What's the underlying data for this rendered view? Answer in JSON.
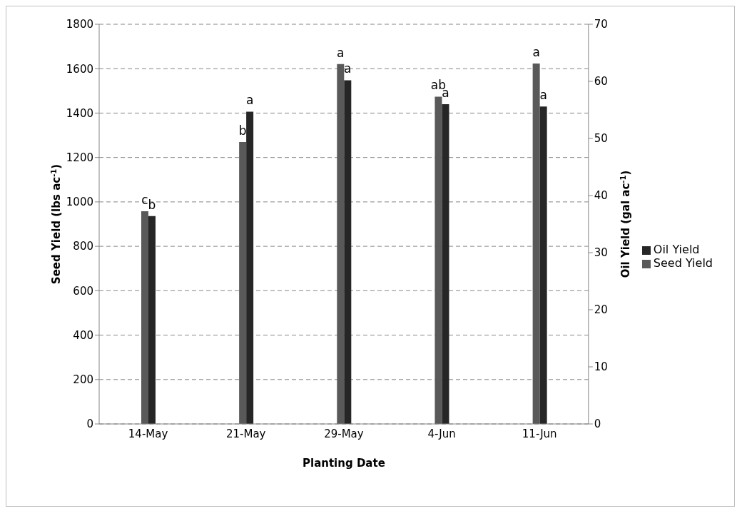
{
  "chart_data": {
    "type": "bar",
    "xlabel": "Planting Date",
    "ylabel": "Seed Yield (lbs ac$^{-1}$)",
    "y2label": "Oil Yield (gal ac$^{-1}$)",
    "categories": [
      "14-May",
      "21-May",
      "29-May",
      "4-Jun",
      "11-Jun"
    ],
    "series": [
      {
        "name": "Seed Yield",
        "color": "#595959",
        "values": [
          958,
          1270,
          1621,
          1474,
          1623
        ],
        "value_labels": [
          "c",
          "b",
          "a",
          "ab",
          "a"
        ]
      },
      {
        "name": "Oil Yield",
        "color": "#262626",
        "axis": "y2",
        "values": [
          36.4,
          54.7,
          60.2,
          56.0,
          55.6
        ],
        "value_labels": [
          "b",
          "a",
          "a",
          "a",
          "a"
        ]
      }
    ],
    "ylim": [
      0,
      1800
    ],
    "yticks": [
      0,
      200,
      400,
      600,
      800,
      1000,
      1200,
      1400,
      1600,
      1800
    ],
    "y2lim": [
      0,
      70
    ],
    "y2ticks": [
      0,
      10,
      20,
      30,
      40,
      50,
      60,
      70
    ],
    "grid": "y",
    "line_style": "dashed",
    "legend": "right"
  }
}
